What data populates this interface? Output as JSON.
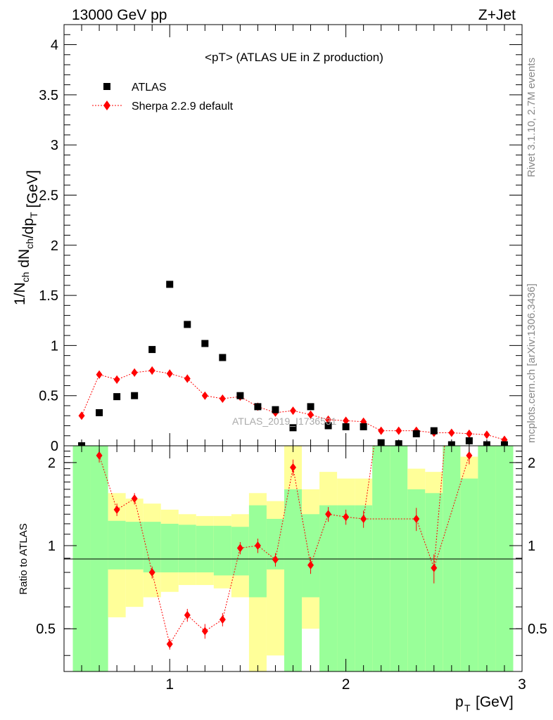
{
  "header": {
    "left": "13000 GeV pp",
    "right": "Z+Jet"
  },
  "side_labels": {
    "rivet": "Rivet 3.1.10,  2.7M events",
    "mcplots": "mcplots.cern.ch [arXiv:1306.3436]"
  },
  "watermark": "ATLAS_2019_I1736531",
  "colors": {
    "data": "#000000",
    "mc": "#ff0000",
    "band_inner": "#99ff99",
    "band_outer": "#ffff99"
  },
  "chart_data": [
    {
      "type": "scatter",
      "title": "<pT> (ATLAS UE in Z production)",
      "ylabel": "1/N_ch dN_ch/dp_T [GeV]",
      "xlim": [
        0.4,
        3.0
      ],
      "ylim": [
        0,
        4.2
      ],
      "yticks": [
        "0",
        "0.5",
        "1",
        "1.5",
        "2",
        "2.5",
        "3",
        "3.5",
        "4"
      ],
      "legend_position": "top-left",
      "x": [
        0.5,
        0.6,
        0.7,
        0.8,
        0.9,
        1.0,
        1.1,
        1.2,
        1.3,
        1.4,
        1.5,
        1.6,
        1.7,
        1.8,
        1.9,
        2.0,
        2.1,
        2.2,
        2.3,
        2.4,
        2.5,
        2.6,
        2.7,
        2.8,
        2.9
      ],
      "series": [
        {
          "name": "ATLAS",
          "marker": "square",
          "values": [
            0.0,
            0.33,
            0.49,
            0.5,
            0.96,
            1.61,
            1.21,
            1.02,
            0.88,
            0.5,
            0.39,
            0.36,
            0.18,
            0.39,
            0.2,
            0.19,
            0.19,
            0.03,
            0.02,
            0.12,
            0.15,
            0.01,
            0.05,
            0.01,
            0.01
          ]
        },
        {
          "name": "Sherpa 2.2.9 default",
          "marker": "diamond",
          "values": [
            0.3,
            0.71,
            0.66,
            0.73,
            0.75,
            0.72,
            0.67,
            0.5,
            0.47,
            0.49,
            0.39,
            0.33,
            0.35,
            0.31,
            0.26,
            0.25,
            0.24,
            0.15,
            0.15,
            0.15,
            0.13,
            0.13,
            0.12,
            0.11,
            0.06
          ],
          "errors": [
            0.02,
            0.04,
            0.04,
            0.04,
            0.04,
            0.04,
            0.04,
            0.03,
            0.03,
            0.03,
            0.02,
            0.02,
            0.02,
            0.02,
            0.02,
            0.02,
            0.02,
            0.01,
            0.01,
            0.01,
            0.01,
            0.01,
            0.01,
            0.01,
            0.01
          ]
        }
      ]
    },
    {
      "type": "scatter",
      "ylabel": "Ratio to ATLAS",
      "xlabel": "p_T [GeV]",
      "xlim": [
        0.4,
        3.0
      ],
      "ylim": [
        0.35,
        2.3
      ],
      "yticks": [
        "0.5",
        "1",
        "2"
      ],
      "xticks": [
        "1",
        "2",
        "3"
      ],
      "reference_line": 1,
      "bins": [
        {
          "x": [
            0.45,
            0.55
          ],
          "outer": [
            0.35,
            2.3
          ],
          "inner": [
            0.35,
            2.3
          ]
        },
        {
          "x": [
            0.55,
            0.65
          ],
          "outer": [
            0.35,
            2.3
          ],
          "inner": [
            0.35,
            2.3
          ]
        },
        {
          "x": [
            0.65,
            0.75
          ],
          "outer": [
            0.55,
            1.55
          ],
          "inner": [
            0.82,
            1.23
          ]
        },
        {
          "x": [
            0.75,
            0.85
          ],
          "outer": [
            0.6,
            1.48
          ],
          "inner": [
            0.82,
            1.22
          ]
        },
        {
          "x": [
            0.85,
            0.95
          ],
          "outer": [
            0.65,
            1.42
          ],
          "inner": [
            0.8,
            1.22
          ]
        },
        {
          "x": [
            0.95,
            1.05
          ],
          "outer": [
            0.68,
            1.35
          ],
          "inner": [
            0.8,
            1.2
          ]
        },
        {
          "x": [
            1.05,
            1.15
          ],
          "outer": [
            0.72,
            1.3
          ],
          "inner": [
            0.8,
            1.19
          ]
        },
        {
          "x": [
            1.15,
            1.25
          ],
          "outer": [
            0.72,
            1.28
          ],
          "inner": [
            0.8,
            1.18
          ]
        },
        {
          "x": [
            1.25,
            1.35
          ],
          "outer": [
            0.7,
            1.28
          ],
          "inner": [
            0.78,
            1.18
          ]
        },
        {
          "x": [
            1.35,
            1.45
          ],
          "outer": [
            0.65,
            1.3
          ],
          "inner": [
            0.78,
            1.17
          ]
        },
        {
          "x": [
            1.45,
            1.55
          ],
          "outer": [
            0.35,
            1.55
          ],
          "inner": [
            0.65,
            1.4
          ]
        },
        {
          "x": [
            1.55,
            1.65
          ],
          "outer": [
            0.4,
            1.45
          ],
          "inner": [
            0.82,
            1.25
          ]
        },
        {
          "x": [
            1.65,
            1.75
          ],
          "outer": [
            0.35,
            2.3
          ],
          "inner": [
            0.35,
            1.6
          ]
        },
        {
          "x": [
            1.75,
            1.85
          ],
          "outer": [
            0.5,
            1.6
          ],
          "inner": [
            0.65,
            1.3
          ]
        },
        {
          "x": [
            1.85,
            1.95
          ],
          "outer": [
            0.35,
            1.85
          ],
          "inner": [
            0.35,
            1.4
          ]
        },
        {
          "x": [
            1.95,
            2.05
          ],
          "outer": [
            0.35,
            1.75
          ],
          "inner": [
            0.35,
            1.4
          ]
        },
        {
          "x": [
            2.05,
            2.15
          ],
          "outer": [
            0.35,
            1.75
          ],
          "inner": [
            0.35,
            1.4
          ]
        },
        {
          "x": [
            2.15,
            2.25
          ],
          "outer": [
            0.35,
            2.3
          ],
          "inner": [
            0.35,
            2.3
          ]
        },
        {
          "x": [
            2.25,
            2.35
          ],
          "outer": [
            0.35,
            2.3
          ],
          "inner": [
            0.35,
            2.3
          ]
        },
        {
          "x": [
            2.35,
            2.45
          ],
          "outer": [
            0.35,
            1.9
          ],
          "inner": [
            0.35,
            1.6
          ]
        },
        {
          "x": [
            2.45,
            2.55
          ],
          "outer": [
            0.35,
            1.85
          ],
          "inner": [
            0.35,
            1.55
          ]
        },
        {
          "x": [
            2.55,
            2.65
          ],
          "outer": [
            0.35,
            2.3
          ],
          "inner": [
            0.35,
            2.3
          ]
        },
        {
          "x": [
            2.65,
            2.75
          ],
          "outer": [
            0.35,
            2.1
          ],
          "inner": [
            0.35,
            1.75
          ]
        },
        {
          "x": [
            2.75,
            2.85
          ],
          "outer": [
            0.35,
            2.3
          ],
          "inner": [
            0.35,
            2.3
          ]
        },
        {
          "x": [
            2.85,
            2.95
          ],
          "outer": [
            0.35,
            2.3
          ],
          "inner": [
            0.35,
            2.3
          ]
        }
      ],
      "points": [
        {
          "x": 0.6,
          "y": 2.12,
          "err": 0.12
        },
        {
          "x": 0.7,
          "y": 1.35,
          "err": 0.07
        },
        {
          "x": 0.8,
          "y": 1.48,
          "err": 0.07
        },
        {
          "x": 0.9,
          "y": 0.8,
          "err": 0.04
        },
        {
          "x": 1.0,
          "y": 0.44,
          "err": 0.02
        },
        {
          "x": 1.1,
          "y": 0.56,
          "err": 0.03
        },
        {
          "x": 1.2,
          "y": 0.49,
          "err": 0.03
        },
        {
          "x": 1.3,
          "y": 0.54,
          "err": 0.03
        },
        {
          "x": 1.4,
          "y": 0.98,
          "err": 0.05
        },
        {
          "x": 1.5,
          "y": 1.0,
          "err": 0.06
        },
        {
          "x": 1.6,
          "y": 0.89,
          "err": 0.05
        },
        {
          "x": 1.7,
          "y": 1.92,
          "err": 0.13
        },
        {
          "x": 1.8,
          "y": 0.85,
          "err": 0.06
        },
        {
          "x": 1.9,
          "y": 1.3,
          "err": 0.08
        },
        {
          "x": 2.0,
          "y": 1.27,
          "err": 0.08
        },
        {
          "x": 2.1,
          "y": 1.25,
          "err": 0.09
        },
        {
          "x": 2.4,
          "y": 1.25,
          "err": 0.12
        },
        {
          "x": 2.5,
          "y": 0.83,
          "err": 0.1
        },
        {
          "x": 2.7,
          "y": 2.12,
          "err": 0.15
        }
      ],
      "segments_to_edge": [
        {
          "from": {
            "x": 2.1,
            "y": 1.25
          },
          "to": {
            "x": 2.16,
            "y": 2.3
          }
        },
        {
          "from": {
            "x": 2.5,
            "y": 0.83
          },
          "to": {
            "x": 2.56,
            "y": 2.3
          }
        }
      ]
    }
  ]
}
